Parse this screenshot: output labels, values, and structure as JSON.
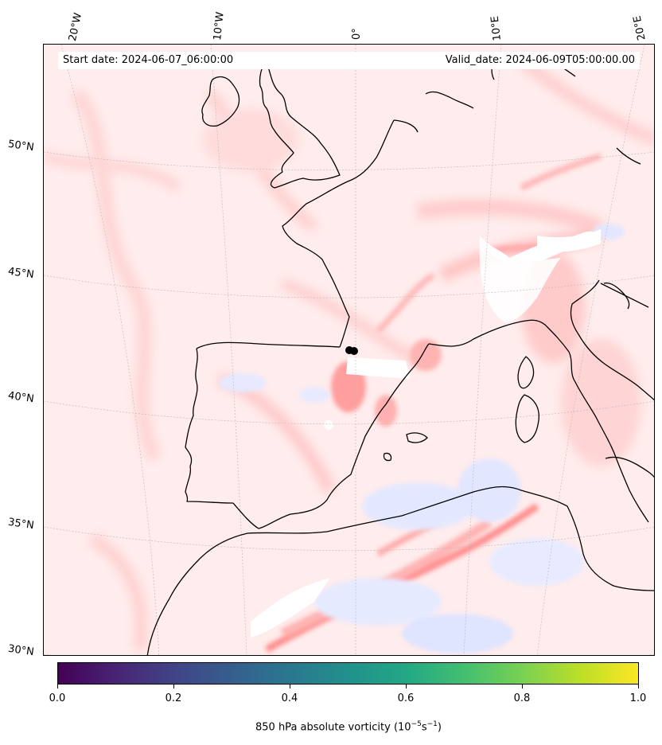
{
  "map": {
    "start_date": "Start date: 2024-06-07_06:00:00",
    "valid_date": "Valid_date: 2024-06-09T05:00:00.00",
    "lon_labels": [
      "20°W",
      "10°W",
      "0°",
      "10°E",
      "20°E"
    ],
    "lat_labels": [
      "50°N",
      "45°N",
      "40°N",
      "35°N",
      "30°N"
    ],
    "colormap": "bwr",
    "coastline_color": "#000000"
  },
  "colorbar": {
    "colormap": "viridis",
    "ticks": [
      "0.0",
      "0.2",
      "0.4",
      "0.6",
      "0.8",
      "1.0"
    ],
    "label_prefix": "850 hPa absolute vorticity (10",
    "label_exp1": "−5",
    "label_mid": "s",
    "label_exp2": "−1",
    "label_suffix": ")"
  }
}
